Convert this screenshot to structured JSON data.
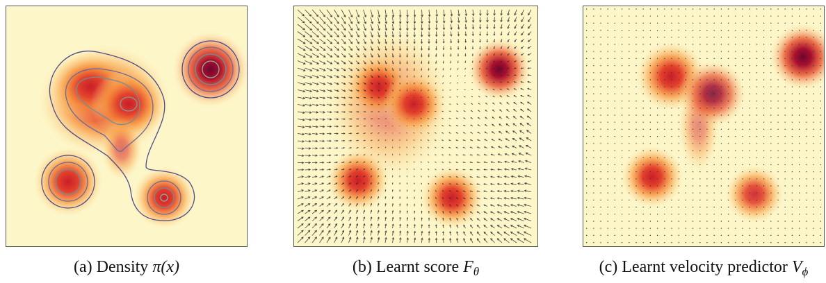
{
  "panels": [
    {
      "label": "(a)",
      "text": "Density ",
      "math": "π(x)",
      "sub": null
    },
    {
      "label": "(b)",
      "text": "Learnt score ",
      "math": "F",
      "sub": "θ"
    },
    {
      "label": "(c)",
      "text": "Learnt velocity predictor ",
      "math": "V",
      "sub": "ϕ"
    }
  ]
}
